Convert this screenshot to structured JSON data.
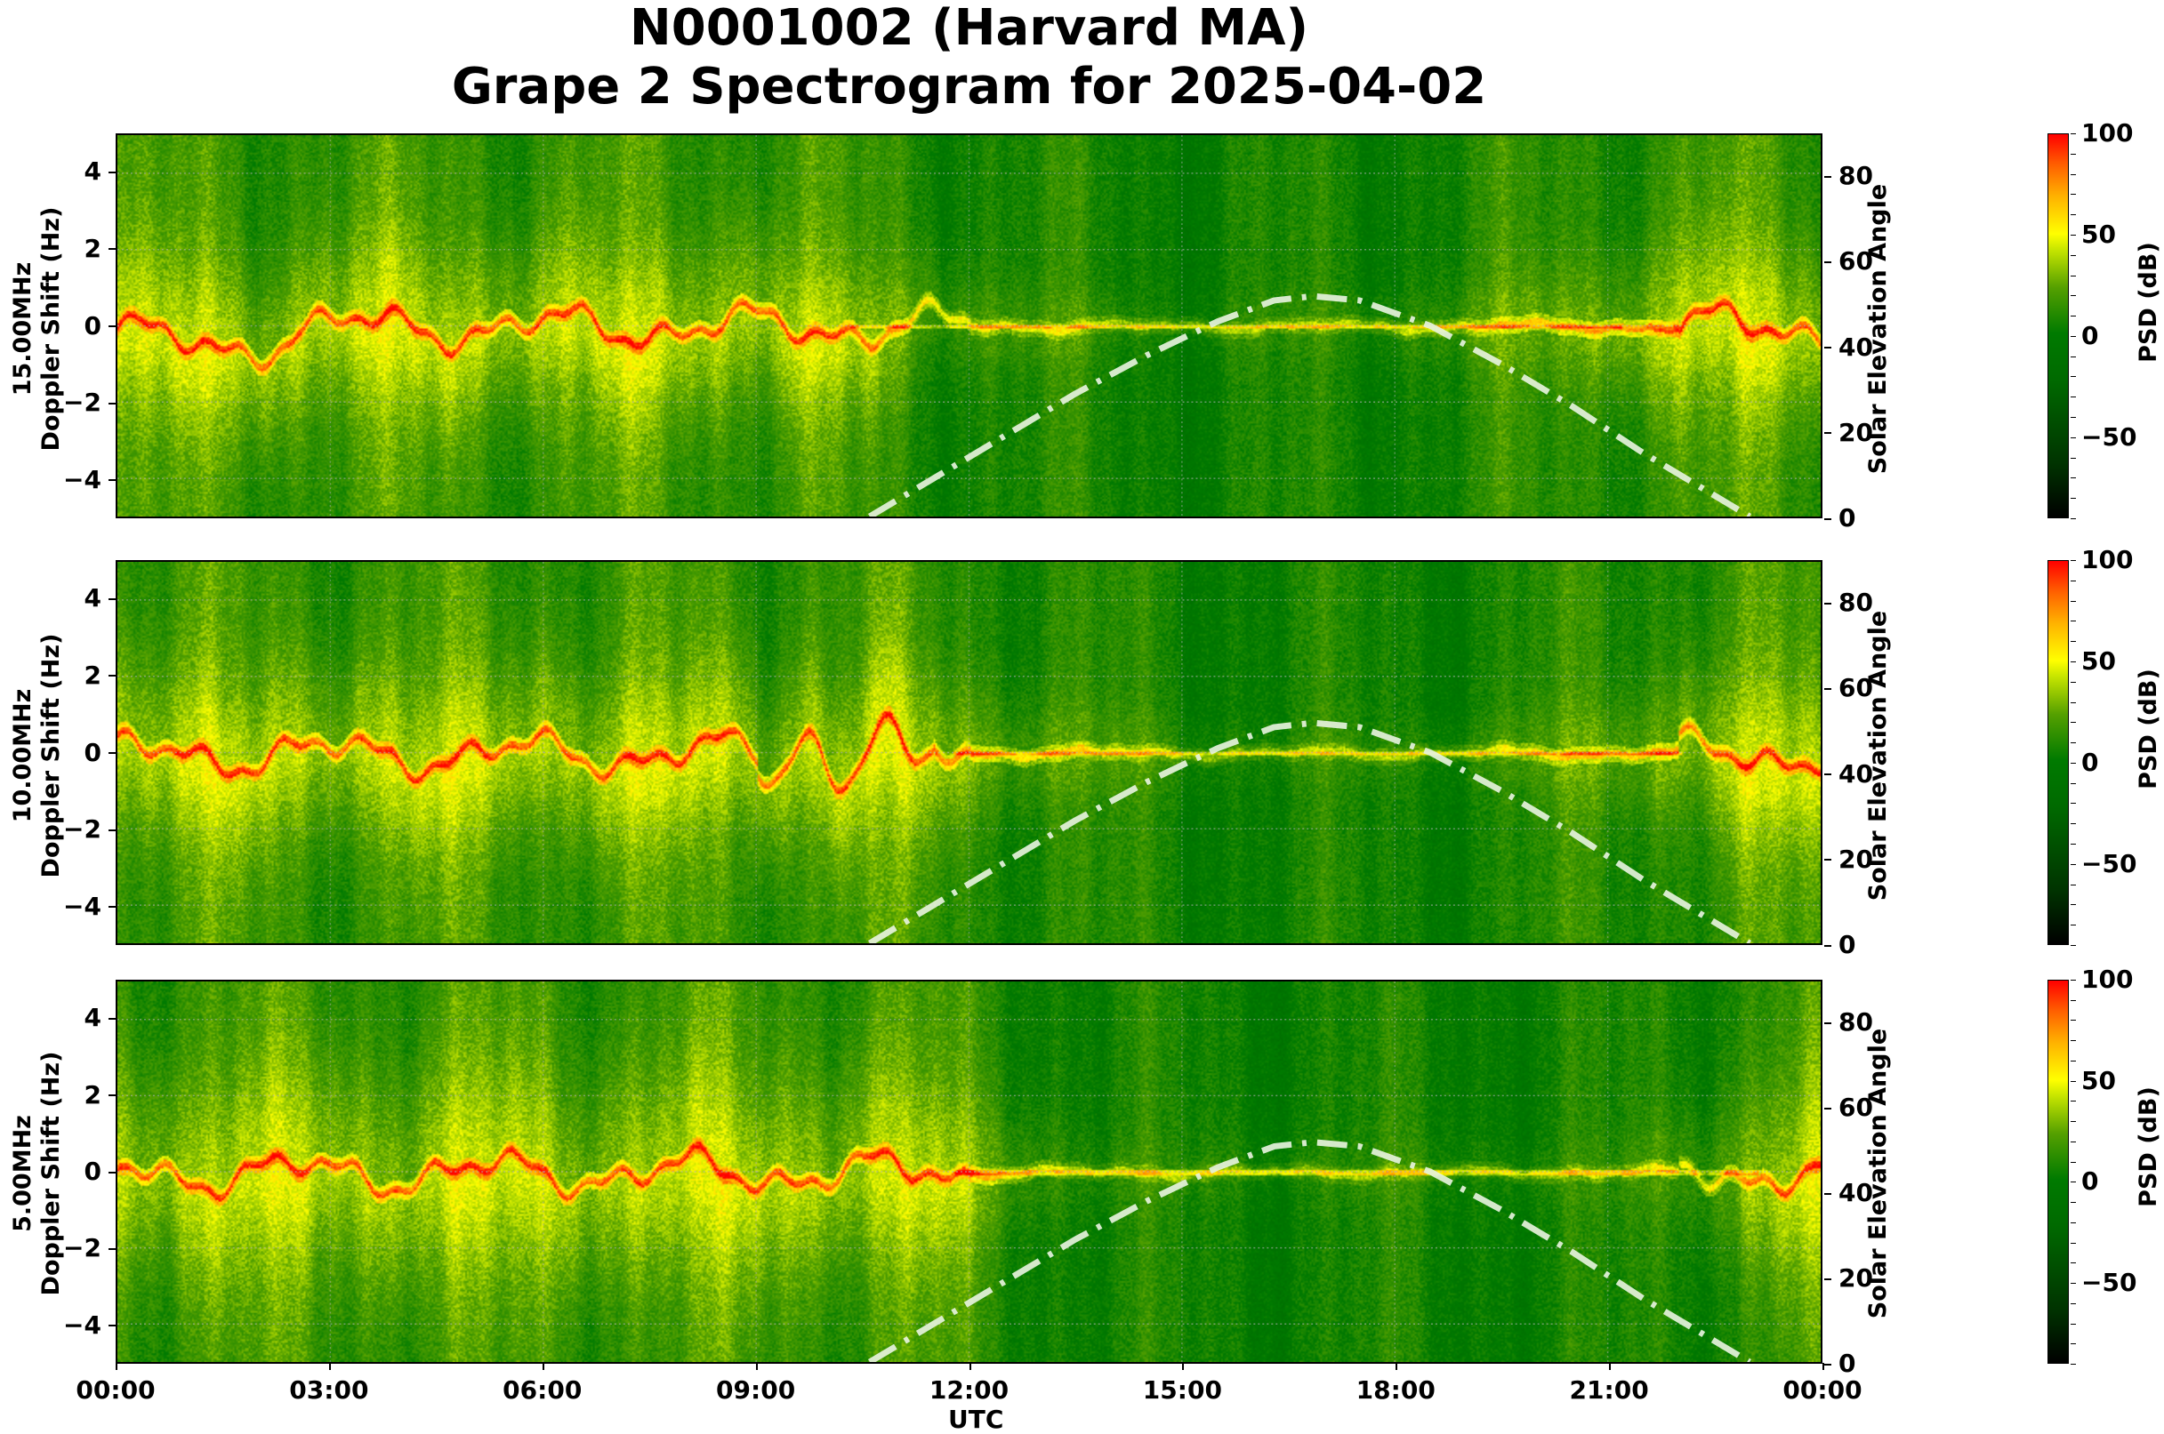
{
  "title": {
    "line1": "N0001002 (Harvard MA)",
    "line2": "Grape 2 Spectrogram for 2025-04-02"
  },
  "x_axis": {
    "label": "UTC",
    "ticks": [
      "00:00",
      "03:00",
      "06:00",
      "09:00",
      "12:00",
      "15:00",
      "18:00",
      "21:00",
      "00:00"
    ]
  },
  "left_axis": {
    "ticks": [
      "4",
      "2",
      "0",
      "−2",
      "−4"
    ],
    "range": [
      -5,
      5
    ]
  },
  "right_axis": {
    "label": "Solar Elevation Angle",
    "ticks": [
      "80",
      "60",
      "40",
      "20",
      "0"
    ],
    "range": [
      0,
      90
    ]
  },
  "colorbar": {
    "label": "PSD (dB)",
    "ticks": [
      "100",
      "50",
      "0",
      "−50"
    ],
    "range": [
      -90,
      100
    ],
    "colors": [
      "#000000",
      "#006600",
      "#007a00",
      "#ffff00",
      "#ff8800",
      "#ff0000"
    ]
  },
  "panels": [
    {
      "freq_label": "15.00MHz",
      "axis_label": "Doppler Shift (Hz)"
    },
    {
      "freq_label": "10.00MHz",
      "axis_label": "Doppler Shift (Hz)"
    },
    {
      "freq_label": "5.00MHz",
      "axis_label": "Doppler Shift (Hz)"
    }
  ],
  "chart_data": {
    "type": "heatmap",
    "title": "N0001002 (Harvard MA) Grape 2 Spectrogram for 2025-04-02",
    "xlabel": "UTC",
    "ylabel": "Doppler Shift (Hz)",
    "y2label": "Solar Elevation Angle",
    "colorbar_label": "PSD (dB)",
    "xlim": [
      "00:00",
      "24:00"
    ],
    "ylim": [
      -5,
      5
    ],
    "y2lim": [
      0,
      90
    ],
    "clim": [
      -90,
      100
    ],
    "grid": true,
    "subplots": [
      {
        "name": "15.00MHz",
        "carrier_doppler_hz_note": "trace near 0 Hz, fluctuating -1.5 to +1 Hz at night; daytime absorption 12:00-21:00"
      },
      {
        "name": "10.00MHz",
        "carrier_doppler_hz_note": "strong trace near 0 Hz with multipath swings to -1.5/+1.5 Hz 00:00-12:00; weak steady line 12:00-22:00"
      },
      {
        "name": "5.00MHz",
        "carrier_doppler_hz_note": "strong trace 00:00-11:30; absorbed (green) 11:30-23:30"
      }
    ],
    "solar_elevation_series": {
      "name": "Solar Elevation Angle",
      "style": "dash-dot, light green-white",
      "x_hours": [
        10.6,
        11.5,
        12.5,
        13.5,
        14.5,
        15.5,
        16.3,
        16.85,
        17.5,
        18.5,
        19.5,
        20.5,
        21.5,
        22.3,
        23.0
      ],
      "y_deg": [
        0,
        9,
        19,
        29,
        38,
        46,
        51,
        52,
        51,
        45,
        36,
        26,
        15,
        7,
        0
      ]
    }
  }
}
